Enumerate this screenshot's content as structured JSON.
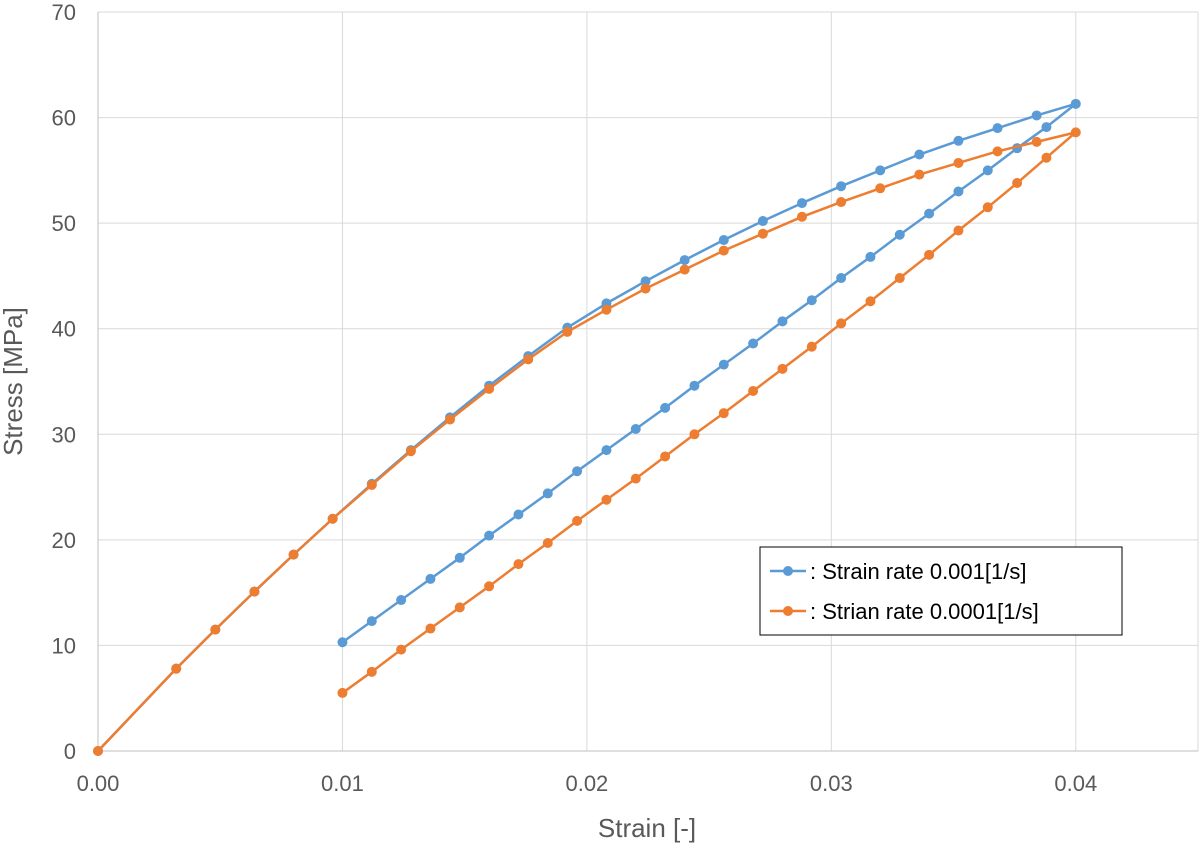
{
  "chart_data": {
    "type": "scatter",
    "xlabel": "Strain [-]",
    "ylabel": "Stress [MPa]",
    "xlim": [
      0,
      0.045
    ],
    "ylim": [
      0,
      70
    ],
    "x_ticks": [
      0,
      0.01,
      0.02,
      0.03,
      0.04
    ],
    "x_tick_labels": [
      "0.00",
      "0.01",
      "0.02",
      "0.03",
      "0.04"
    ],
    "y_ticks": [
      0,
      10,
      20,
      30,
      40,
      50,
      60,
      70
    ],
    "y_tick_labels": [
      "0",
      "10",
      "20",
      "30",
      "40",
      "50",
      "60",
      "70"
    ],
    "grid": true,
    "legend_position": "bottom-right",
    "series": [
      {
        "name": ": Strain rate 0.001[1/s]",
        "color": "#5B9BD5",
        "x": [
          0,
          0.0032,
          0.0048,
          0.0064,
          0.008,
          0.0096,
          0.0112,
          0.0128,
          0.0144,
          0.016,
          0.0176,
          0.0192,
          0.0208,
          0.0224,
          0.024,
          0.0256,
          0.0272,
          0.0288,
          0.0304,
          0.032,
          0.0336,
          0.0352,
          0.0368,
          0.0384,
          0.04,
          0.0388,
          0.0376,
          0.0364,
          0.0352,
          0.034,
          0.0328,
          0.0316,
          0.0304,
          0.0292,
          0.028,
          0.0268,
          0.0256,
          0.0244,
          0.0232,
          0.022,
          0.0208,
          0.0196,
          0.0184,
          0.0172,
          0.016,
          0.0148,
          0.0136,
          0.0124,
          0.0112,
          0.01
        ],
        "y": [
          0,
          7.8,
          11.5,
          15.1,
          18.6,
          22.0,
          25.3,
          28.5,
          31.6,
          34.6,
          37.4,
          40.1,
          42.4,
          44.5,
          46.5,
          48.4,
          50.2,
          51.9,
          53.5,
          55.0,
          56.5,
          57.8,
          59.0,
          60.2,
          61.3,
          59.1,
          57.1,
          55.0,
          53.0,
          50.9,
          48.9,
          46.8,
          44.8,
          42.7,
          40.7,
          38.6,
          36.6,
          34.6,
          32.5,
          30.5,
          28.5,
          26.5,
          24.4,
          22.4,
          20.4,
          18.3,
          16.3,
          14.3,
          12.3,
          10.3
        ]
      },
      {
        "name": ": Strian rate 0.0001[1/s]",
        "color": "#ED7D31",
        "x": [
          0,
          0.0032,
          0.0048,
          0.0064,
          0.008,
          0.0096,
          0.0112,
          0.0128,
          0.0144,
          0.016,
          0.0176,
          0.0192,
          0.0208,
          0.0224,
          0.024,
          0.0256,
          0.0272,
          0.0288,
          0.0304,
          0.032,
          0.0336,
          0.0352,
          0.0368,
          0.0384,
          0.04,
          0.0388,
          0.0376,
          0.0364,
          0.0352,
          0.034,
          0.0328,
          0.0316,
          0.0304,
          0.0292,
          0.028,
          0.0268,
          0.0256,
          0.0244,
          0.0232,
          0.022,
          0.0208,
          0.0196,
          0.0184,
          0.0172,
          0.016,
          0.0148,
          0.0136,
          0.0124,
          0.0112,
          0.01
        ],
        "y": [
          0,
          7.8,
          11.5,
          15.1,
          18.6,
          22.0,
          25.2,
          28.4,
          31.4,
          34.3,
          37.1,
          39.7,
          41.8,
          43.8,
          45.6,
          47.4,
          49.0,
          50.6,
          52.0,
          53.3,
          54.6,
          55.7,
          56.8,
          57.7,
          58.6,
          56.2,
          53.8,
          51.5,
          49.3,
          47.0,
          44.8,
          42.6,
          40.5,
          38.3,
          36.2,
          34.1,
          32.0,
          30.0,
          27.9,
          25.8,
          23.8,
          21.8,
          19.7,
          17.7,
          15.6,
          13.6,
          11.6,
          9.6,
          7.5,
          5.5
        ]
      }
    ]
  }
}
